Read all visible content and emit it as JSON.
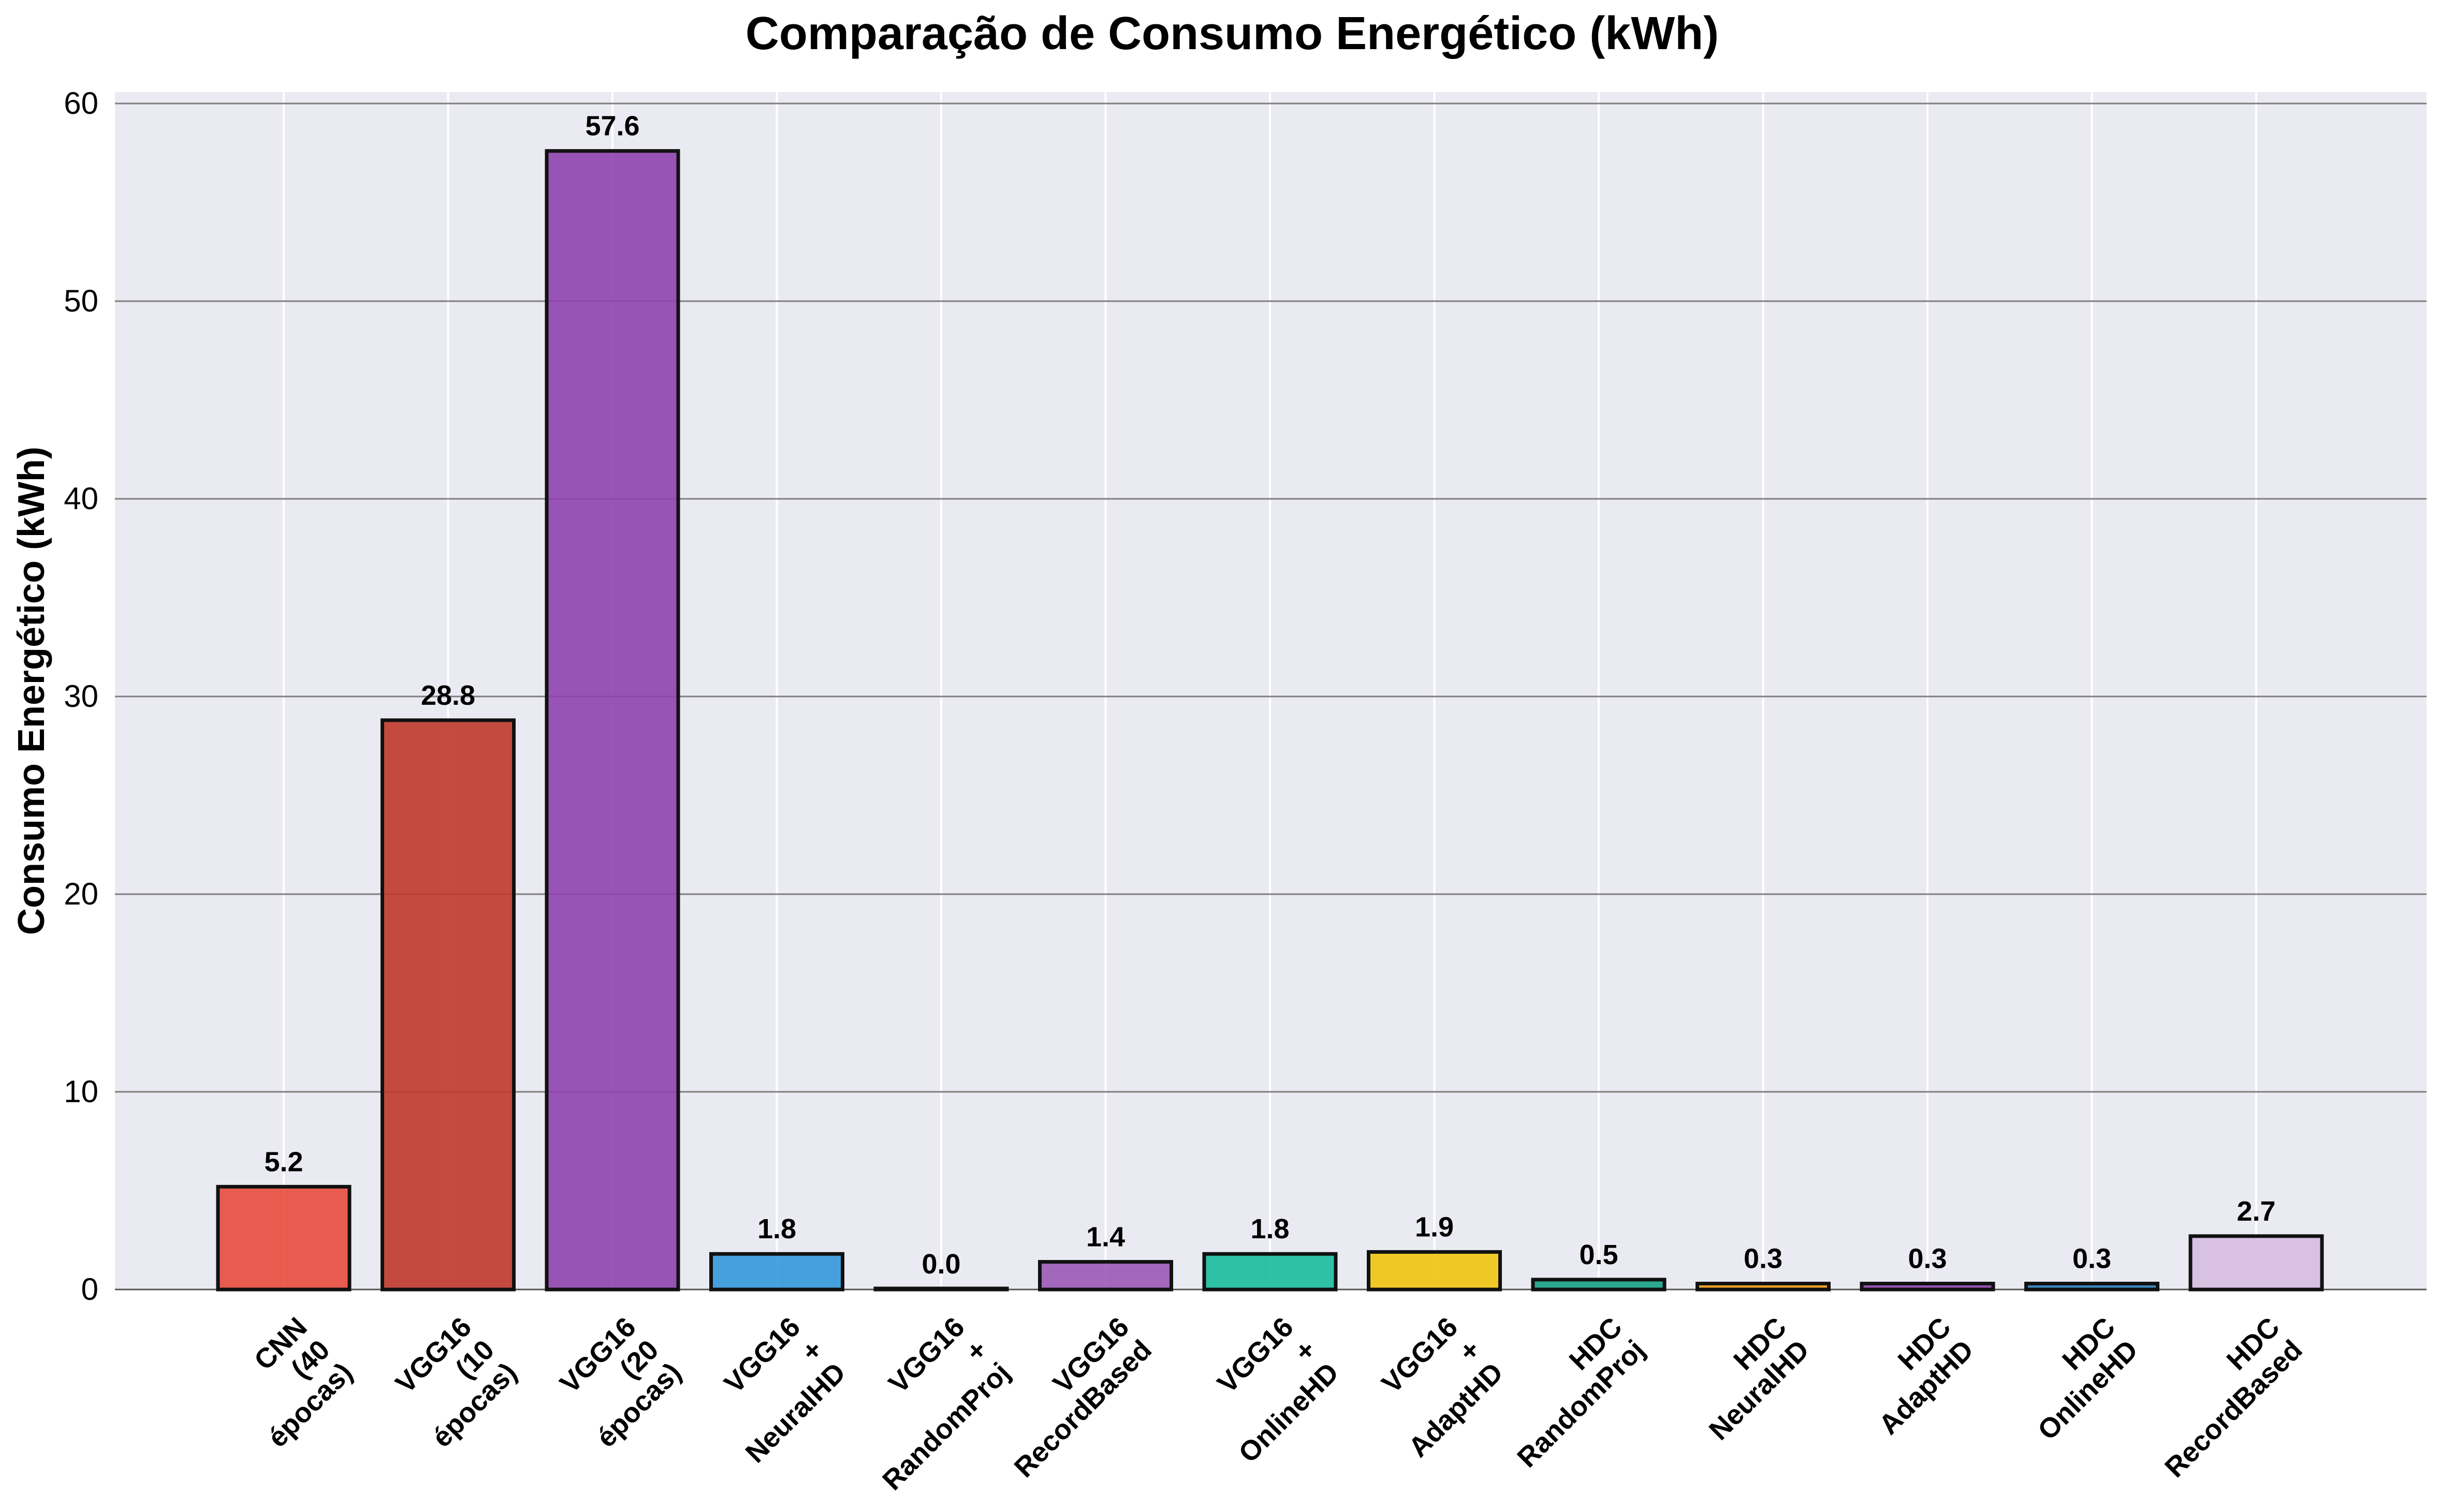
{
  "chart_data": {
    "type": "bar",
    "title": "Comparação de Consumo Energético (kWh)",
    "xlabel": "",
    "ylabel": "Consumo Energético (kWh)",
    "ylim": [
      0,
      60.5
    ],
    "yticks": [
      0,
      10,
      20,
      30,
      40,
      50,
      60
    ],
    "grid": true,
    "categories": [
      [
        "CNN",
        "(40",
        "épocas)"
      ],
      [
        "VGG16",
        "(10",
        "épocas)"
      ],
      [
        "VGG16",
        "(20",
        "épocas)"
      ],
      [
        "VGG16",
        "+",
        "NeuralHD"
      ],
      [
        "VGG16",
        "+",
        "RandomProj"
      ],
      [
        "VGG16",
        "RecordBased"
      ],
      [
        "VGG16",
        "+",
        "OnlineHD"
      ],
      [
        "VGG16",
        "+",
        "AdaptHD"
      ],
      [
        "HDC",
        "RandomProj"
      ],
      [
        "HDC",
        "NeuralHD"
      ],
      [
        "HDC",
        "AdaptHD"
      ],
      [
        "HDC",
        "OnlineHD"
      ],
      [
        "HDC",
        "RecordBased"
      ]
    ],
    "values": [
      5.2,
      28.8,
      57.6,
      1.8,
      0.02,
      1.4,
      1.8,
      1.9,
      0.5,
      0.3,
      0.3,
      0.3,
      2.7
    ],
    "data_labels": [
      "5.2",
      "28.8",
      "57.6",
      "1.8",
      "0.0",
      "1.4",
      "1.8",
      "1.9",
      "0.5",
      "0.3",
      "0.3",
      "0.3",
      "2.7"
    ],
    "colors": [
      "#e74c3c",
      "#c0392b",
      "#8e44ad",
      "#3498db",
      "#2c3e50",
      "#9b59b6",
      "#1abc9c",
      "#f1c40f",
      "#16a085",
      "#f39c12",
      "#8e44ad",
      "#2980b9",
      "#d7bde2"
    ]
  }
}
